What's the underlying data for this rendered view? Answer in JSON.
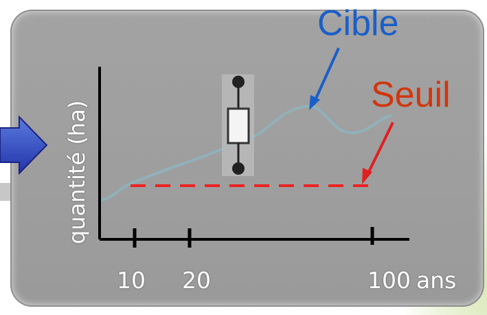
{
  "diagram": {
    "ylabel": "quantité (ha)",
    "labels": {
      "cible": "Cible",
      "seuil": "Seuil"
    },
    "x_ticks": [
      "10",
      "20",
      "100"
    ],
    "x_unit": "ans",
    "icons": [
      "arrow-right-icon",
      "resistor-icon"
    ],
    "colors": {
      "cible": "#1a5fc8",
      "seuil": "#d1350c",
      "threshold_line": "#ee2222",
      "curve": "#8fb2bc"
    }
  }
}
